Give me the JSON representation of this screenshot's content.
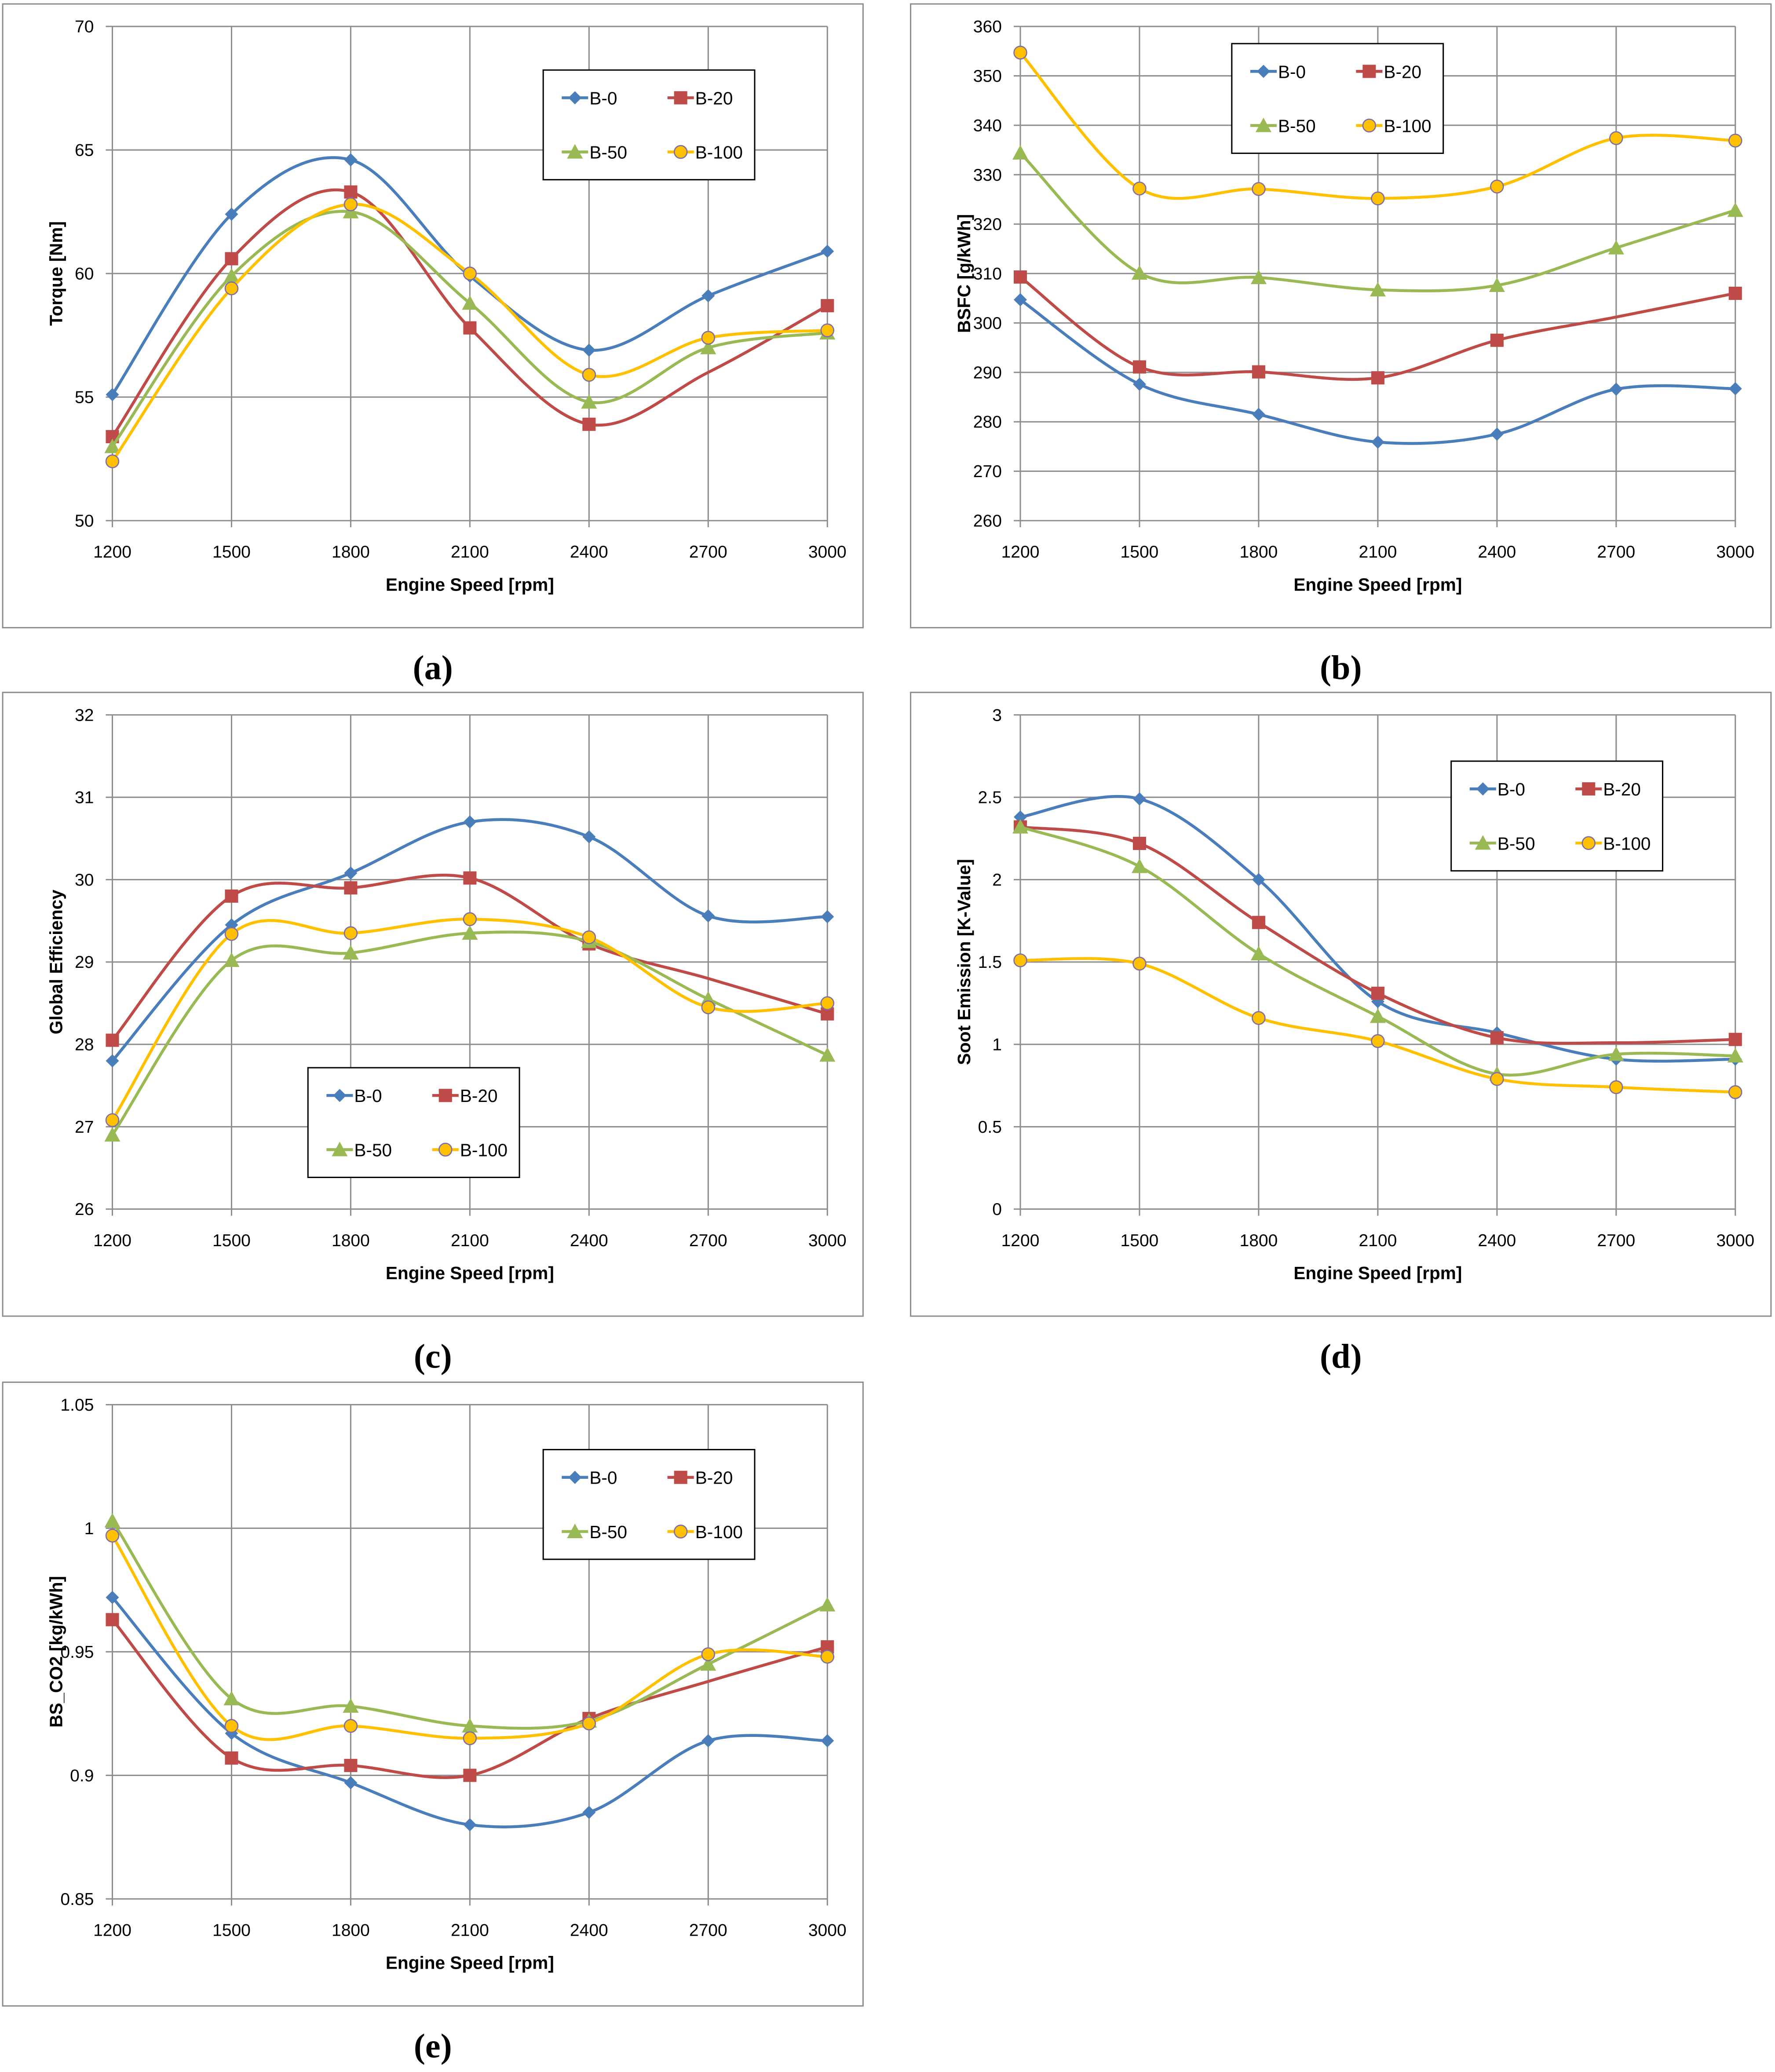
{
  "colors": {
    "B-0": "#4A7EBB",
    "B-20": "#BE4B48",
    "B-50": "#98B954",
    "B-100": "#FFC000",
    "marker_outline": "#7F6FA8",
    "grid": "#8C8C8C",
    "frame": "#8C8C8C"
  },
  "chart_data": [
    {
      "type": "line",
      "caption_letter": "a",
      "caption": "(a)",
      "xlabel": "Engine Speed [rpm]",
      "ylabel": "Torque [Nm]",
      "x": [
        1200,
        1500,
        1800,
        2100,
        2400,
        2700,
        3000
      ],
      "x_ticks": [
        "1200",
        "1500",
        "1800",
        "2100",
        "2400",
        "2700",
        "3000"
      ],
      "ylim": [
        50,
        70
      ],
      "y_ticks": [
        "50",
        "55",
        "60",
        "65",
        "70"
      ],
      "grid": true,
      "legend_position": "top-right",
      "series": [
        {
          "name": "B-0",
          "marker": "diamond",
          "values": [
            55.1,
            62.4,
            64.6,
            59.9,
            56.9,
            59.1,
            60.9
          ]
        },
        {
          "name": "B-20",
          "marker": "square",
          "values": [
            53.4,
            60.6,
            63.3,
            57.8,
            53.9,
            56.0,
            58.7
          ],
          "unmarked_x": [
            2700
          ]
        },
        {
          "name": "B-50",
          "marker": "triangle",
          "values": [
            53.0,
            59.9,
            62.5,
            58.8,
            54.8,
            57.0,
            57.6
          ]
        },
        {
          "name": "B-100",
          "marker": "circle",
          "values": [
            52.4,
            59.4,
            62.8,
            60.0,
            55.9,
            57.4,
            57.7
          ]
        }
      ]
    },
    {
      "type": "line",
      "caption_letter": "b",
      "caption": "(b)",
      "xlabel": "Engine Speed [rpm]",
      "ylabel": "BSFC [g/kWh]",
      "x": [
        1200,
        1500,
        1800,
        2100,
        2400,
        2700,
        3000
      ],
      "x_ticks": [
        "1200",
        "1500",
        "1800",
        "2100",
        "2400",
        "2700",
        "3000"
      ],
      "ylim": [
        260,
        360
      ],
      "y_ticks": [
        "260",
        "270",
        "280",
        "290",
        "300",
        "310",
        "320",
        "330",
        "340",
        "350",
        "360"
      ],
      "grid": true,
      "legend_position": "top-center",
      "series": [
        {
          "name": "B-0",
          "marker": "diamond",
          "values": [
            304.7,
            287.6,
            281.5,
            275.9,
            277.5,
            286.6,
            286.7
          ]
        },
        {
          "name": "B-20",
          "marker": "square",
          "values": [
            309.3,
            291.1,
            290.1,
            288.9,
            296.5,
            301.2,
            306.0
          ],
          "unmarked_x": [
            2700
          ]
        },
        {
          "name": "B-50",
          "marker": "triangle",
          "values": [
            334.4,
            310.1,
            309.2,
            306.7,
            307.6,
            315.2,
            322.8
          ]
        },
        {
          "name": "B-100",
          "marker": "circle",
          "values": [
            354.7,
            327.2,
            327.1,
            325.2,
            327.6,
            337.4,
            336.9
          ]
        }
      ]
    },
    {
      "type": "line",
      "caption_letter": "c",
      "caption": "(c)",
      "xlabel": "Engine Speed [rpm]",
      "ylabel": "Global Efficiency",
      "x": [
        1200,
        1500,
        1800,
        2100,
        2400,
        2700,
        3000
      ],
      "x_ticks": [
        "1200",
        "1500",
        "1800",
        "2100",
        "2400",
        "2700",
        "3000"
      ],
      "ylim": [
        26,
        32
      ],
      "y_ticks": [
        "26",
        "27",
        "28",
        "29",
        "30",
        "31",
        "32"
      ],
      "grid": true,
      "legend_position": "bottom-center",
      "series": [
        {
          "name": "B-0",
          "marker": "diamond",
          "values": [
            27.8,
            29.45,
            30.08,
            30.7,
            30.52,
            29.56,
            29.55
          ]
        },
        {
          "name": "B-20",
          "marker": "square",
          "values": [
            28.05,
            29.8,
            29.9,
            30.02,
            29.22,
            28.8,
            28.37
          ],
          "unmarked_x": [
            2700
          ]
        },
        {
          "name": "B-50",
          "marker": "triangle",
          "values": [
            26.9,
            29.02,
            29.11,
            29.35,
            29.25,
            28.55,
            27.87
          ]
        },
        {
          "name": "B-100",
          "marker": "circle",
          "values": [
            27.08,
            29.34,
            29.35,
            29.52,
            29.3,
            28.45,
            28.5
          ]
        }
      ]
    },
    {
      "type": "line",
      "caption_letter": "d",
      "caption": "(d)",
      "xlabel": "Engine Speed [rpm]",
      "ylabel": "Soot Emission [K-Value]",
      "x": [
        1200,
        1500,
        1800,
        2100,
        2400,
        2700,
        3000
      ],
      "x_ticks": [
        "1200",
        "1500",
        "1800",
        "2100",
        "2400",
        "2700",
        "3000"
      ],
      "ylim": [
        0,
        3
      ],
      "y_ticks": [
        "0",
        "0.5",
        "1",
        "1.5",
        "2",
        "2.5",
        "3"
      ],
      "grid": true,
      "legend_position": "top-right",
      "series": [
        {
          "name": "B-0",
          "marker": "diamond",
          "values": [
            2.38,
            2.49,
            2.0,
            1.26,
            1.07,
            0.91,
            0.91
          ]
        },
        {
          "name": "B-20",
          "marker": "square",
          "values": [
            2.32,
            2.22,
            1.74,
            1.31,
            1.04,
            1.01,
            1.03
          ],
          "unmarked_x": [
            2700
          ]
        },
        {
          "name": "B-50",
          "marker": "triangle",
          "values": [
            2.32,
            2.08,
            1.55,
            1.17,
            0.82,
            0.94,
            0.93
          ]
        },
        {
          "name": "B-100",
          "marker": "circle",
          "values": [
            1.51,
            1.49,
            1.16,
            1.02,
            0.79,
            0.74,
            0.71
          ]
        }
      ]
    },
    {
      "type": "line",
      "caption_letter": "e",
      "caption": "(e)",
      "xlabel": "Engine Speed [rpm]",
      "ylabel": "BS_CO2 [kg/kWh]",
      "x": [
        1200,
        1500,
        1800,
        2100,
        2400,
        2700,
        3000
      ],
      "x_ticks": [
        "1200",
        "1500",
        "1800",
        "2100",
        "2400",
        "2700",
        "3000"
      ],
      "ylim": [
        0.85,
        1.05
      ],
      "y_ticks": [
        "0.85",
        "0.9",
        "0.95",
        "1",
        "1.05"
      ],
      "grid": true,
      "legend_position": "top-right",
      "series": [
        {
          "name": "B-0",
          "marker": "diamond",
          "values": [
            0.972,
            0.917,
            0.897,
            0.88,
            0.885,
            0.914,
            0.914
          ]
        },
        {
          "name": "B-20",
          "marker": "square",
          "values": [
            0.963,
            0.907,
            0.904,
            0.9,
            0.923,
            0.938,
            0.952
          ],
          "unmarked_x": [
            2700
          ]
        },
        {
          "name": "B-50",
          "marker": "triangle",
          "values": [
            1.003,
            0.931,
            0.928,
            0.92,
            0.922,
            0.945,
            0.969
          ]
        },
        {
          "name": "B-100",
          "marker": "circle",
          "values": [
            0.997,
            0.92,
            0.92,
            0.915,
            0.921,
            0.949,
            0.948
          ]
        }
      ]
    }
  ]
}
